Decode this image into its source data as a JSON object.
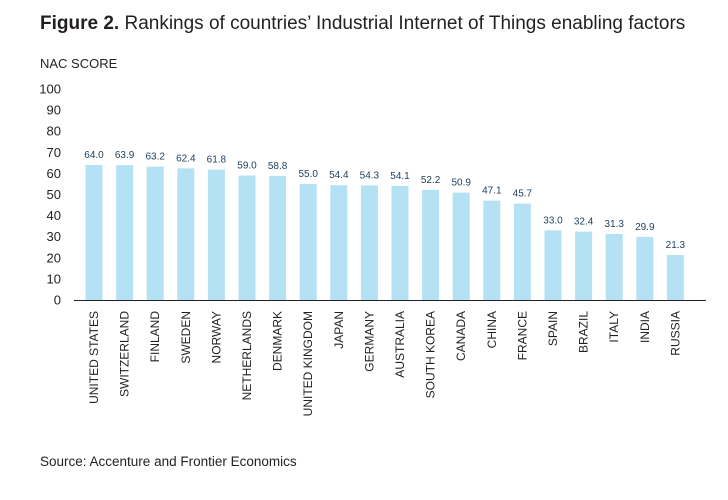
{
  "figure": {
    "label": "Figure 2.",
    "title": "Rankings of countries’ Industrial Internet of Things enabling factors",
    "source": "Source: Accenture and Frontier Economics"
  },
  "colors": {
    "bar": "#b4e1f4",
    "value_label": "#1c3f5e",
    "text": "#231f20"
  },
  "chart_data": {
    "type": "bar",
    "title": "Rankings of countries’ Industrial Internet of Things enabling factors",
    "ylabel": "NAC SCORE",
    "xlabel": "",
    "ylim": [
      0,
      100
    ],
    "yticks": [
      0,
      10,
      20,
      30,
      40,
      50,
      60,
      70,
      80,
      90,
      100
    ],
    "grid": false,
    "categories": [
      "UNITED STATES",
      "SWITZERLAND",
      "FINLAND",
      "SWEDEN",
      "NORWAY",
      "NETHERLANDS",
      "DENMARK",
      "UNITED KINGDOM",
      "JAPAN",
      "GERMANY",
      "AUSTRALIA",
      "SOUTH KOREA",
      "CANADA",
      "CHINA",
      "FRANCE",
      "SPAIN",
      "BRAZIL",
      "ITALY",
      "INDIA",
      "RUSSIA"
    ],
    "values": [
      64.0,
      63.9,
      63.2,
      62.4,
      61.8,
      59.0,
      58.8,
      55.0,
      54.4,
      54.3,
      54.1,
      52.2,
      50.9,
      47.1,
      45.7,
      33.0,
      32.4,
      31.3,
      29.9,
      21.3
    ],
    "value_labels": [
      "64.0",
      "63.9",
      "63.2",
      "62.4",
      "61.8",
      "59.0",
      "58.8",
      "55.0",
      "54.4",
      "54.3",
      "54.1",
      "52.2",
      "50.9",
      "47.1",
      "45.7",
      "33.0",
      "32.4",
      "31.3",
      "29.9",
      "21.3"
    ]
  }
}
